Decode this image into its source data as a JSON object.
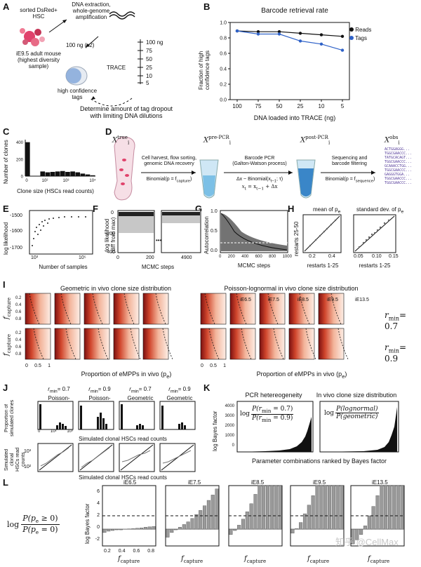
{
  "panels": {
    "a": "A",
    "b": "B",
    "c": "C",
    "d": "D",
    "e": "E",
    "f": "F",
    "g": "G",
    "h": "H",
    "i": "I",
    "j": "J",
    "k": "K",
    "l": "L"
  },
  "panel_a": {
    "sorted_cells": "sorted DsRed+\nHSC",
    "dna_extraction": "DNA extraction,\nwhole-genome\namplification",
    "mouse": "iE9.5 adult mouse\n(highest diversity\nsample)",
    "input_amount": "100 ng (x2)",
    "trace": "TRACE",
    "dilutions": [
      "100 ng",
      "75",
      "50",
      "25",
      "10",
      "5"
    ],
    "high_conf": "high confidence\ntags",
    "caption": "Determine amount of tag dropout\nwith limiting DNA dilutions"
  },
  "panel_c": {
    "ylabel": "Number of clones",
    "xlabel": "Clone size (HSCs read counts)",
    "yticks": [
      "0",
      "200",
      "400"
    ],
    "xticks": [
      "0",
      "10²",
      "10³",
      "10⁴"
    ],
    "chart_data": {
      "type": "bar",
      "categories": [
        "0",
        "1",
        "2",
        "3",
        "4",
        "5",
        "6",
        "7",
        "8",
        "9",
        "10",
        "11",
        "12",
        "13"
      ],
      "values": [
        400,
        0,
        0,
        55,
        45,
        50,
        55,
        60,
        50,
        55,
        45,
        30,
        20,
        10
      ],
      "xlabel": "Clone size (HSCs read counts)",
      "ylabel": "Number of clones",
      "ylim": [
        0,
        430
      ]
    }
  },
  "panel_b": {
    "chart_data": {
      "type": "line",
      "title": "Barcode retrieval rate",
      "categories": [
        "100",
        "75",
        "50",
        "25",
        "10",
        "5"
      ],
      "series": [
        {
          "name": "Reads",
          "color": "#111111",
          "values": [
            0.89,
            0.88,
            0.88,
            0.86,
            0.84,
            0.82
          ]
        },
        {
          "name": "Tags",
          "color": "#2f62c8",
          "values": [
            0.89,
            0.85,
            0.85,
            0.76,
            0.72,
            0.64
          ]
        }
      ],
      "xlabel": "DNA loaded into TRACE (ng)",
      "ylabel": "Fraction of high\nconfidence tags",
      "ylim": [
        0.0,
        1.0
      ],
      "yticks": [
        "0.0",
        "0.2",
        "0.4",
        "0.6",
        "0.8",
        "1.0"
      ]
    }
  },
  "panel_d": {
    "x_true": "X",
    "x_true_sup": "true",
    "x_true_sub": "i",
    "x_pre": "X",
    "x_pre_sup": "pre-PCR",
    "x_pre_sub": "i",
    "x_post": "X",
    "x_post_sup": "post-PCR",
    "x_post_sub": "i",
    "x_obs": "X",
    "x_obs_sup": "obs",
    "x_obs_sub": "i",
    "step1": "Cell harvest, flow sorting,\ngenomic DNA recovery",
    "step1_model": "Binomial(p = f",
    "step1_model_sub": "capture",
    "step2": "Barcode PCR\n(Galton-Watson process)",
    "step2_model": "Δx ~ Binomial(x",
    "step2_model_b": "; τ)",
    "step2_model2": "x",
    "step2_model2b": " = x",
    "step2_model2c": " + Δx",
    "step3": "Sequencing and\nbarcode filtering",
    "step3_model": "Binomial(p = f",
    "step3_model_sub": "sequence",
    "sequences": [
      "ACTGGAGGG...",
      "TGGCGAACCC...",
      "TATGCACAGT...",
      "TGGCGAACCC...",
      "GCAAACCTGG...",
      "TGGCGAACCC...",
      "GAGGGTGGA...",
      "TGGCGAACCC...",
      "TGGCGAACCC..."
    ]
  },
  "panel_e": {
    "ylabel": "log likelihood",
    "xlabel": "Number of samples",
    "yticks": [
      "-1500",
      "-1600",
      "-1700"
    ],
    "xticks": [
      "10³",
      "10⁵"
    ]
  },
  "panel_f": {
    "ylabel": "log likelihood\n(diff from max)",
    "xlabel": "MCMC steps",
    "yticks": [
      "0",
      "-200",
      "-400"
    ],
    "xticks": [
      "0",
      "200",
      "4900"
    ],
    "ellipsis": "•••"
  },
  "panel_g": {
    "ylabel": "Autocorrelation",
    "xlabel": "MCMC steps",
    "yticks": [
      "1.0",
      "0.5",
      "0.0"
    ],
    "xticks": [
      "0",
      "200",
      "400",
      "600",
      "800",
      "1000"
    ]
  },
  "panel_h": {
    "title1": "mean of p",
    "title1_sub": "e",
    "title2": "standard dev. of p",
    "title2_sub": "e",
    "ylabel": "restarts 25-50",
    "xlabel": "restarts 1-25",
    "xticks1": [
      "0.2",
      "0.4"
    ],
    "xticks2": [
      "0.05",
      "0.10",
      "0.15"
    ]
  },
  "panel_i": {
    "left_title": "Geometric in vivo clone size distribution",
    "right_title": "Poisson-lognormal in vivo clone size distribution",
    "ylabel": "f",
    "ylabel_sub": "capture",
    "yticks": [
      "0.2",
      "0.4",
      "0.6",
      "0.8"
    ],
    "xticks": [
      "0",
      "0.5",
      "1"
    ],
    "xlabel": "Proportion of eMPPs in vivo  (p",
    "xlabel_sub": "e",
    "xlabel_end": ")",
    "stages": [
      "iE6.5",
      "iE7.5",
      "iE8.5",
      "iE9.5",
      "iE13.5"
    ],
    "rmin1": "r",
    "rmin1_sub": "min",
    "rmin1_val": "= 0.7",
    "rmin2": "r",
    "rmin2_sub": "min",
    "rmin2_val": "= 0.9"
  },
  "panel_j": {
    "titles": [
      {
        "r": "r",
        "sub": "min",
        "val": "= 0.7",
        "dist": "Poisson-lognormal"
      },
      {
        "r": "r",
        "sub": "min",
        "val": "= 0.9",
        "dist": "Poisson-lognormal"
      },
      {
        "r": "r",
        "sub": "min",
        "val": "= 0.7",
        "dist": "Geometric"
      },
      {
        "r": "r",
        "sub": "min",
        "val": "= 0.9",
        "dist": "Geometric"
      }
    ],
    "ylabel_top": "Proportion of\nsimulated clones",
    "xlabel_top": "Simulated clonal HSCs read counts",
    "ylabel_bottom": "Simulated clonal\nHSCs read counts",
    "xlabel_bottom": "Simulated clonal HSCs read counts",
    "xticks": [
      "0",
      "10²",
      "10³"
    ],
    "qq_ticks": [
      "10²",
      "10³"
    ]
  },
  "panel_k": {
    "title1": "PCR hetereogeneity",
    "title2": "In vivo clone size distribution",
    "ylabel": "log Bayes factor",
    "yticks": [
      "0",
      "1000",
      "2000",
      "3000",
      "4000"
    ],
    "xlabel": "Parameter combinations ranked by Bayes factor",
    "f1_num": "P(r",
    "f1_num_sub": "min",
    "f1_num_end": " = 0.7)",
    "f1_den": "P(r",
    "f1_den_sub": "min",
    "f1_den_end": " = 0.9)",
    "f2_num": "P(lognormal)",
    "f2_den": "P(geometric)",
    "log": "log"
  },
  "panel_l": {
    "log": "log",
    "num": "P(p",
    "num_sub": "e",
    "num_end": " ≥ 0)",
    "den": "P(p",
    "den_sub": "e",
    "den_end": " = 0)",
    "ylabel": "log Bayes factor",
    "yticks": [
      "6",
      "4",
      "2",
      "0",
      "-2"
    ],
    "xticks": [
      "0.2",
      "0.4",
      "0.6",
      "0.8"
    ],
    "xlabel": "f",
    "xlabel_sub": "capture",
    "stages": [
      "iE6.5",
      "iE7.5",
      "iE8.5",
      "iE9.5",
      "iE13.5"
    ],
    "chart_data": [
      {
        "type": "bar",
        "title": "iE6.5",
        "values": [
          -0.5,
          -0.3,
          -0.2,
          -0.1,
          -0.1,
          0.0,
          0.05,
          0.1,
          0.15,
          0.2,
          0.3,
          0.35,
          0.4
        ]
      },
      {
        "type": "bar",
        "title": "iE7.5",
        "values": [
          -1.2,
          -0.5,
          -0.1,
          0.3,
          0.7,
          1.1,
          1.6,
          2.2,
          2.8,
          3.5,
          4.3,
          5.1,
          6.0
        ]
      },
      {
        "type": "bar",
        "title": "iE8.5",
        "values": [
          -0.8,
          -0.2,
          0.6,
          1.5,
          2.6,
          3.8,
          5.2,
          6.5,
          6.5,
          6.5,
          6.5,
          6.5,
          6.5
        ]
      },
      {
        "type": "bar",
        "title": "iE9.5",
        "values": [
          -0.6,
          0.1,
          1.0,
          2.3,
          3.6,
          5.0,
          6.5,
          6.5,
          6.5,
          6.5,
          6.5,
          6.5,
          6.5
        ]
      },
      {
        "type": "bar",
        "title": "iE13.5",
        "values": [
          -2.2,
          -1.6,
          -0.8,
          0.5,
          2.0,
          3.4,
          5.0,
          6.5,
          6.5,
          6.5,
          6.5,
          6.5,
          6.5
        ]
      }
    ]
  },
  "watermark": "知乎 @CellMax"
}
